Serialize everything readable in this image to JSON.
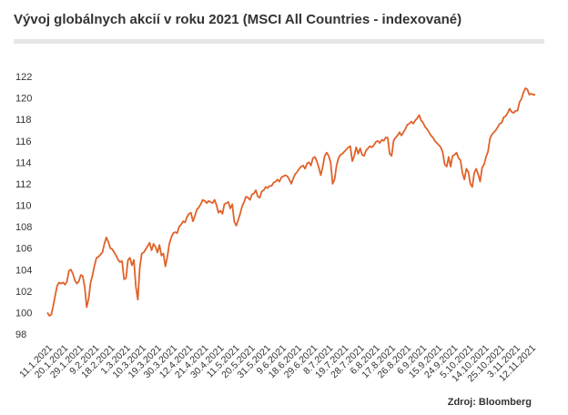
{
  "title": "Vývoj globálnych akcií v roku 2021 (MSCI All Countries - indexované)",
  "source": "Zdroj: Bloomberg",
  "line_color": "#e0622a",
  "chart_data": {
    "type": "line",
    "title": "Vývoj globálnych akcií v roku 2021 (MSCI All Countries - indexované)",
    "xlabel": "",
    "ylabel": "",
    "grid": false,
    "ylim": [
      98,
      122
    ],
    "yticks": [
      98,
      100,
      102,
      104,
      106,
      108,
      110,
      112,
      114,
      116,
      118,
      120,
      122
    ],
    "xticks": [
      "11.1.2021",
      "20.1.2021",
      "29.1.2021",
      "9.2.2021",
      "18.2.2021",
      "1.3.2021",
      "10.3.2021",
      "19.3.2021",
      "30.3.2021",
      "12.4.2021",
      "21.4.2021",
      "30.4.2021",
      "11.5.2021",
      "20.5.2021",
      "31.5.2021",
      "9.6.2021",
      "18.6.2021",
      "29.6.2021",
      "8.7.2021",
      "19.7.2021",
      "28.7.2021",
      "6.8.2021",
      "17.8.2021",
      "26.8.2021",
      "6.9.2021",
      "15.9.2021",
      "24.9.2021",
      "5.10.2021",
      "14.10.2021",
      "25.10.2021",
      "3.11.2021",
      "12.11.2021"
    ],
    "series": [
      {
        "values": [
          100.0,
          99.7,
          99.8,
          100.6,
          101.6,
          102.5,
          102.8,
          102.7,
          102.8,
          102.6,
          102.9,
          103.9,
          104.0,
          103.6,
          103.0,
          102.7,
          102.9,
          103.5,
          103.4,
          102.4,
          100.5,
          101.3,
          102.8,
          103.5,
          104.4,
          105.1,
          105.2,
          105.4,
          105.6,
          106.4,
          107.0,
          106.6,
          106.0,
          105.9,
          105.6,
          105.3,
          104.9,
          104.7,
          104.8,
          103.1,
          103.2,
          104.9,
          105.1,
          104.4,
          104.9,
          102.4,
          101.2,
          104.2,
          105.5,
          105.6,
          105.9,
          106.2,
          106.5,
          105.8,
          106.4,
          106.1,
          105.6,
          106.3,
          105.3,
          105.5,
          104.3,
          105.2,
          106.4,
          107.0,
          107.4,
          107.5,
          107.4,
          108.0,
          108.2,
          108.5,
          108.4,
          108.9,
          109.2,
          109.3,
          108.5,
          109.0,
          109.6,
          109.8,
          110.1,
          110.5,
          110.4,
          110.2,
          110.4,
          110.3,
          110.2,
          110.5,
          110.0,
          109.3,
          109.5,
          109.2,
          110.1,
          110.2,
          110.3,
          109.7,
          110.1,
          108.5,
          108.1,
          108.6,
          109.2,
          109.9,
          110.3,
          110.8,
          110.7,
          110.5,
          111.0,
          111.1,
          111.4,
          110.8,
          110.7,
          111.3,
          111.4,
          111.7,
          111.6,
          111.8,
          111.8,
          112.1,
          112.2,
          112.4,
          112.2,
          112.6,
          112.7,
          112.8,
          112.7,
          112.4,
          112.0,
          112.5,
          112.9,
          113.1,
          113.4,
          113.6,
          113.7,
          113.4,
          113.9,
          114.0,
          113.7,
          114.4,
          114.5,
          114.1,
          113.5,
          112.8,
          113.6,
          114.6,
          114.9,
          114.6,
          114.0,
          112.0,
          112.4,
          113.7,
          114.4,
          114.7,
          114.8,
          115.0,
          115.2,
          115.4,
          115.5,
          114.1,
          114.6,
          115.4,
          114.8,
          115.3,
          114.7,
          114.6,
          115.1,
          115.3,
          115.5,
          115.4,
          115.6,
          115.9,
          116.0,
          115.8,
          116.1,
          116.0,
          116.3,
          116.3,
          114.8,
          114.6,
          116.0,
          116.3,
          116.5,
          116.8,
          116.5,
          116.8,
          117.1,
          117.5,
          117.6,
          117.8,
          117.6,
          117.9,
          118.1,
          118.4,
          117.9,
          117.7,
          117.3,
          117.1,
          116.8,
          116.5,
          116.3,
          116.0,
          115.8,
          115.6,
          115.4,
          114.9,
          113.8,
          113.6,
          114.5,
          113.6,
          114.6,
          114.7,
          114.9,
          114.4,
          114.2,
          113.0,
          112.4,
          113.4,
          113.1,
          112.0,
          111.7,
          113.0,
          113.4,
          112.9,
          112.2,
          113.5,
          113.8,
          114.5,
          115.0,
          116.2,
          116.6,
          116.8,
          117.0,
          117.3,
          117.6,
          117.7,
          118.2,
          118.3,
          118.6,
          119.0,
          118.7,
          118.6,
          118.8,
          118.8,
          119.6,
          119.9,
          120.5,
          120.9,
          120.8,
          120.3,
          120.4,
          120.3,
          120.3
        ]
      }
    ]
  }
}
